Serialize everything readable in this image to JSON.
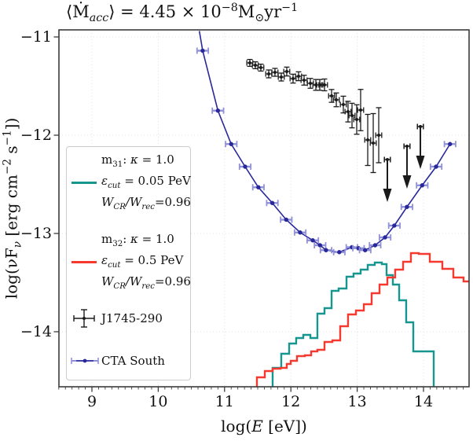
{
  "title": {
    "pre": "⟨Ṁ",
    "sub": "acc",
    "mid": "⟩ = 4.45 × 10",
    "sup": "−8",
    "msun": "M",
    "sun": "⊙",
    "unit": "yr",
    "sup2": "−1"
  },
  "xlabel": {
    "pre": "log(",
    "var": "E",
    "post": " [eV])"
  },
  "ylabel": {
    "pre": "log(νF",
    "sub": "ν",
    "mid": " [erg cm",
    "sup1": "−2",
    "mid2": " s",
    "sup2": "−1",
    "post": "])"
  },
  "axes": {
    "xlim": [
      8.5,
      14.69
    ],
    "ylim": [
      -14.56,
      -10.93
    ],
    "xticks": [
      9,
      10,
      11,
      12,
      13,
      14
    ],
    "yticks": [
      -11,
      -12,
      -13,
      -14
    ],
    "xtick_labels": [
      "9",
      "10",
      "11",
      "12",
      "13",
      "14"
    ],
    "ytick_labels": [
      "−11",
      "−12",
      "−13",
      "−14"
    ],
    "grid": true,
    "minor_tick_step_x": 0.1
  },
  "colors": {
    "cta_blue": "#28289B",
    "cta_cap": "#9191d8",
    "teal": "#17968F",
    "red": "#F5392F",
    "black": "#1a1a1a",
    "grid": "#e0e0e0",
    "spine": "#3b3b3b",
    "legend_border": "#cccccc"
  },
  "legend": {
    "entries": [
      {
        "id": "m31",
        "color": "#17968F",
        "l1": {
          "pre": "m",
          "sub": "31",
          "sep": ":  ",
          "kappa": "κ",
          "eq": " = 1.0"
        },
        "l2": {
          "eps": "ε",
          "sub": "cut",
          "eq": " = 0.05 PeV"
        },
        "l3": {
          "w1": "W",
          "sub1": "CR",
          "slash": "/",
          "w2": "W",
          "sub2": "rec",
          "eq": "=0.96"
        }
      },
      {
        "id": "m32",
        "color": "#F5392F",
        "l1": {
          "pre": "m",
          "sub": "32",
          "sep": ":  ",
          "kappa": "κ",
          "eq": " = 1.0"
        },
        "l2": {
          "eps": "ε",
          "sub": "cut",
          "eq": " = 0.5 PeV"
        },
        "l3": {
          "w1": "W",
          "sub1": "CR",
          "slash": "/",
          "w2": "W",
          "sub2": "rec",
          "eq": "=0.96"
        }
      },
      {
        "id": "j1745",
        "label": "J1745-290"
      },
      {
        "id": "cta",
        "label": "CTA South"
      }
    ]
  },
  "chart_data": {
    "type": "line",
    "title": "⟨Ṁacc⟩ = 4.45 × 10⁻⁸ M⊙yr⁻¹",
    "xlabel": "log(E [eV])",
    "ylabel": "log(νFν [erg cm⁻² s⁻¹])",
    "xlim": [
      8.5,
      14.69
    ],
    "ylim": [
      -14.56,
      -10.93
    ],
    "legend_position": "left",
    "series": [
      {
        "name": "CTA South",
        "type": "line-errorbar",
        "color": "#28289B",
        "cap_color": "#9191d8",
        "xerr": 0.085,
        "points": [
          [
            10.62,
            -10.94
          ],
          [
            10.67,
            -11.14
          ],
          [
            10.9,
            -11.75
          ],
          [
            11.1,
            -12.09
          ],
          [
            11.31,
            -12.32
          ],
          [
            11.51,
            -12.53
          ],
          [
            11.72,
            -12.69
          ],
          [
            11.93,
            -12.86
          ],
          [
            12.14,
            -12.99
          ],
          [
            12.33,
            -13.07
          ],
          [
            12.44,
            -13.12
          ],
          [
            12.53,
            -13.17
          ],
          [
            12.73,
            -13.19
          ],
          [
            12.92,
            -13.14
          ],
          [
            13.02,
            -13.15
          ],
          [
            13.12,
            -13.17
          ],
          [
            13.27,
            -13.12
          ],
          [
            13.42,
            -13.04
          ],
          [
            13.56,
            -12.92
          ],
          [
            13.75,
            -12.73
          ],
          [
            13.98,
            -12.51
          ],
          [
            14.19,
            -12.32
          ],
          [
            14.4,
            -12.09
          ]
        ]
      },
      {
        "name": "J1745-290",
        "type": "scatter-errorbar",
        "color": "#1a1a1a",
        "xerr": 0.045,
        "points": [
          [
            11.381,
            -11.264,
            0.035
          ],
          [
            11.464,
            -11.288,
            0.035
          ],
          [
            11.547,
            -11.312,
            0.035
          ],
          [
            11.666,
            -11.376,
            0.04
          ],
          [
            11.76,
            -11.36,
            0.04
          ],
          [
            11.855,
            -11.408,
            0.04
          ],
          [
            11.938,
            -11.352,
            0.045
          ],
          [
            12.033,
            -11.424,
            0.045
          ],
          [
            12.116,
            -11.4,
            0.045
          ],
          [
            12.199,
            -11.44,
            0.05
          ],
          [
            12.294,
            -11.472,
            0.05
          ],
          [
            12.377,
            -11.488,
            0.055
          ],
          [
            12.436,
            -11.488,
            0.055
          ],
          [
            12.507,
            -11.488,
            0.06
          ],
          [
            12.614,
            -11.6,
            0.065
          ],
          [
            12.685,
            -11.64,
            0.07
          ],
          [
            12.791,
            -11.688,
            0.085
          ],
          [
            12.862,
            -11.76,
            0.105
          ],
          [
            12.922,
            -11.8,
            0.125
          ],
          [
            12.993,
            -11.84,
            0.15
          ],
          [
            13.052,
            -11.744,
            0.21
          ],
          [
            13.159,
            -12.048,
            0.26
          ],
          [
            13.242,
            -12.08,
            0.3
          ],
          [
            13.325,
            -12.0,
            0.28
          ]
        ],
        "upper_limits": [
          [
            13.455,
            -12.248
          ],
          [
            13.751,
            -12.112
          ],
          [
            13.953,
            -11.912
          ]
        ]
      },
      {
        "name": "m31",
        "type": "step",
        "color": "#17968F",
        "base": -14.56,
        "drop_right": true,
        "edges": [
          11.725,
          11.855,
          11.974,
          12.08,
          12.187,
          12.294,
          12.4,
          12.507,
          12.614,
          12.72,
          12.839,
          12.945,
          13.052,
          13.159,
          13.265,
          13.372,
          13.443,
          13.538,
          13.633,
          13.739,
          13.846,
          14.154
        ],
        "levels": [
          -14.368,
          -14.224,
          -14.12,
          -14.064,
          -14.032,
          -14.064,
          -13.816,
          -13.76,
          -13.584,
          -13.56,
          -13.44,
          -13.408,
          -13.368,
          -13.32,
          -13.296,
          -13.312,
          -13.424,
          -13.52,
          -13.68,
          -13.904,
          -14.2
        ]
      },
      {
        "name": "m32",
        "type": "step",
        "color": "#F5392F",
        "base": -14.56,
        "drop_right": false,
        "edges": [
          11.488,
          11.607,
          11.725,
          11.844,
          11.938,
          11.998,
          12.092,
          12.211,
          12.306,
          12.4,
          12.507,
          12.626,
          12.744,
          12.862,
          12.981,
          13.1,
          13.218,
          13.337,
          13.455,
          13.573,
          13.692,
          13.81,
          13.929,
          14.095,
          14.284,
          14.45,
          14.604,
          14.69
        ],
        "levels": [
          -14.464,
          -14.4,
          -14.376,
          -14.368,
          -14.328,
          -14.296,
          -14.248,
          -14.24,
          -14.2,
          -14.184,
          -14.104,
          -14.088,
          -13.944,
          -13.824,
          -13.784,
          -13.72,
          -13.608,
          -13.52,
          -13.448,
          -13.368,
          -13.288,
          -13.2,
          -13.208,
          -13.288,
          -13.36,
          -13.448,
          -13.488
        ]
      }
    ]
  }
}
